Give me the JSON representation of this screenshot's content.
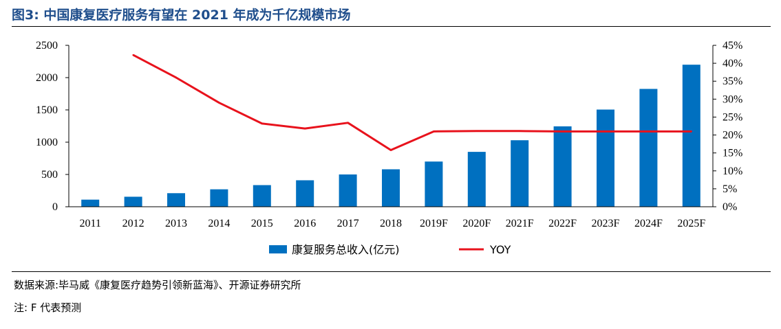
{
  "figure": {
    "title": "图3:  中国康复医疗服务有望在 2021 年成为千亿规模市场",
    "source": "数据来源:毕马威《康复医疗趋势引领新蓝海》、开源证券研究所",
    "note": "注:   F 代表预测"
  },
  "chart_data": {
    "type": "bar",
    "categories": [
      "2011",
      "2012",
      "2013",
      "2014",
      "2015",
      "2016",
      "2017",
      "2018",
      "2019F",
      "2020F",
      "2021F",
      "2022F",
      "2023F",
      "2024F",
      "2025F"
    ],
    "series": [
      {
        "name": "康复服务总收入(亿元)",
        "type": "bar",
        "axis": "left",
        "color": "#0070c0",
        "values": [
          110,
          155,
          210,
          270,
          335,
          410,
          500,
          580,
          700,
          850,
          1030,
          1245,
          1505,
          1825,
          2200
        ]
      },
      {
        "name": "YOY",
        "type": "line",
        "axis": "right",
        "color": "#e8121c",
        "values": [
          null,
          42.3,
          36.0,
          29.0,
          23.2,
          21.8,
          23.4,
          15.8,
          21.0,
          21.1,
          21.1,
          21.0,
          21.0,
          21.0,
          21.0
        ]
      }
    ],
    "y_left": {
      "lim": [
        0,
        2500
      ],
      "ticks": [
        "0",
        "500",
        "1000",
        "1500",
        "2000",
        "2500"
      ]
    },
    "y_right": {
      "lim": [
        0,
        45
      ],
      "ticks": [
        "0%",
        "5%",
        "10%",
        "15%",
        "20%",
        "25%",
        "30%",
        "35%",
        "40%",
        "45%"
      ]
    },
    "legend": {
      "placement": "bottom-center",
      "items": [
        "康复服务总收入(亿元)",
        "YOY"
      ]
    },
    "grid": false
  }
}
